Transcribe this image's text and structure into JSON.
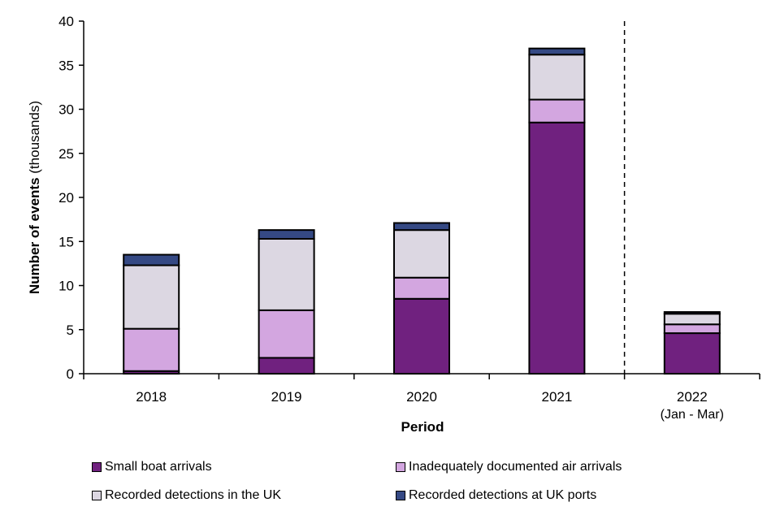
{
  "chart_data": {
    "type": "bar",
    "stacked": true,
    "categories": [
      "2018",
      "2019",
      "2020",
      "2021",
      "2022"
    ],
    "category_sublabels": [
      "",
      "",
      "",
      "",
      "(Jan - Mar)"
    ],
    "xlabel": "Period",
    "ylabel_bold": "Number of events",
    "ylabel_rest": " (thousands)",
    "ylim": [
      0,
      40
    ],
    "yticks": [
      0,
      5,
      10,
      15,
      20,
      25,
      30,
      35,
      40
    ],
    "grid": false,
    "legend_placement": "bottom",
    "series": [
      {
        "name": "Small boat arrivals",
        "color": "#70217f",
        "values": [
          0.3,
          1.8,
          8.5,
          28.5,
          4.6
        ]
      },
      {
        "name": "Inadequately documented air arrivals",
        "color": "#d3a6e0",
        "values": [
          4.8,
          5.4,
          2.4,
          2.6,
          1.0
        ]
      },
      {
        "name": "Recorded detections in the UK",
        "color": "#dcd7e2",
        "values": [
          7.2,
          8.1,
          5.4,
          5.1,
          1.2
        ]
      },
      {
        "name": "Recorded detections at UK ports",
        "color": "#354984",
        "values": [
          1.2,
          1.0,
          0.8,
          0.7,
          0.2
        ]
      }
    ]
  }
}
